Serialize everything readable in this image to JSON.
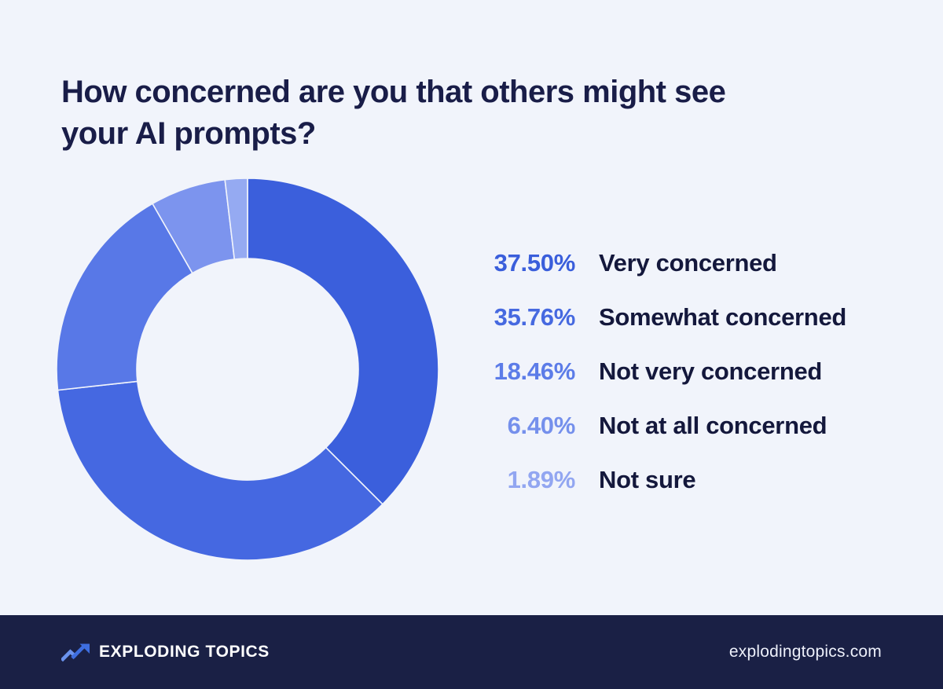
{
  "colors": {
    "background": "#F1F4FB",
    "title_text": "#191D48",
    "legend_label_text": "#14183C",
    "footer_background": "#1A2045",
    "footer_text": "#FFFFFF",
    "logo_arrow_light": "#6B93EE",
    "logo_arrow_dark": "#3E6EE0"
  },
  "chart_data": {
    "type": "pie",
    "donut": true,
    "title": "How concerned are you that others might see your AI prompts?",
    "start_angle_deg": -90,
    "direction": "clockwise",
    "legend_position": "right",
    "inner_radius_ratio": 0.58,
    "items": [
      {
        "label": "Very concerned",
        "value": 37.5,
        "pct_label": "37.50%",
        "color": "#3B5FDC",
        "color_text": "#3A5EDB"
      },
      {
        "label": "Somewhat concerned",
        "value": 35.76,
        "pct_label": "35.76%",
        "color": "#4568E1",
        "color_text": "#4669E0"
      },
      {
        "label": "Not very concerned",
        "value": 18.46,
        "pct_label": "18.46%",
        "color": "#5878E7",
        "color_text": "#5C7CE8"
      },
      {
        "label": "Not at all concerned",
        "value": 6.4,
        "pct_label": "6.40%",
        "color": "#7C94EE",
        "color_text": "#7590EC"
      },
      {
        "label": "Not sure",
        "value": 1.89,
        "pct_label": "1.89%",
        "color": "#95AAF2",
        "color_text": "#92A6F1"
      }
    ]
  },
  "footer": {
    "brand_name": "EXPLODING TOPICS",
    "website": "explodingtopics.com",
    "logo_icon": "trending-up-arrow-icon"
  }
}
